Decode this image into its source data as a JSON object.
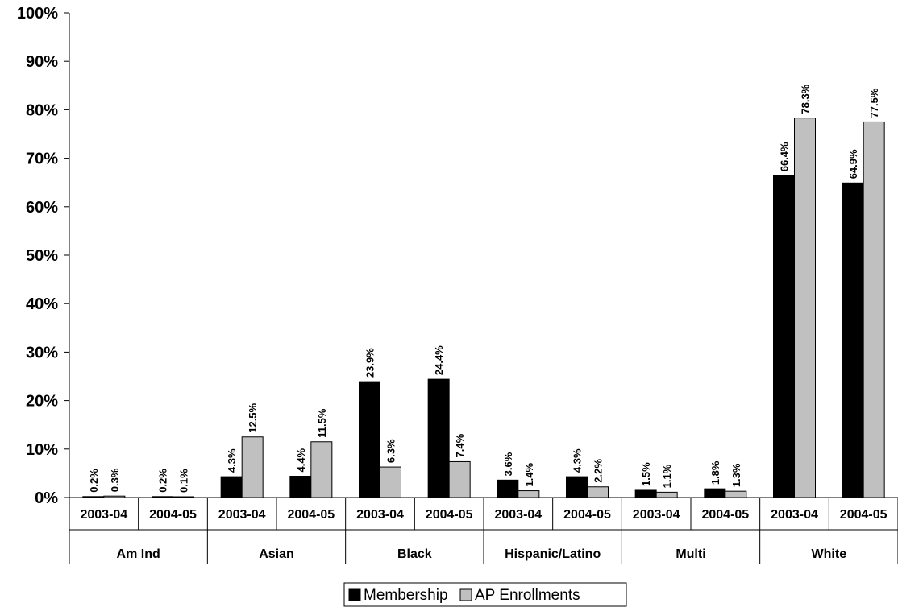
{
  "chart_data": {
    "type": "bar",
    "ylim": [
      0,
      100
    ],
    "yticks": [
      "0%",
      "10%",
      "20%",
      "30%",
      "40%",
      "50%",
      "60%",
      "70%",
      "80%",
      "90%",
      "100%"
    ],
    "grid": false,
    "legend_position": "bottom",
    "groups": [
      {
        "name": "Am Ind",
        "categories": [
          "2003-04",
          "2004-05"
        ]
      },
      {
        "name": "Asian",
        "categories": [
          "2003-04",
          "2004-05"
        ]
      },
      {
        "name": "Black",
        "categories": [
          "2003-04",
          "2004-05"
        ]
      },
      {
        "name": "Hispanic/Latino",
        "categories": [
          "2003-04",
          "2004-05"
        ]
      },
      {
        "name": "Multi",
        "categories": [
          "2003-04",
          "2004-05"
        ]
      },
      {
        "name": "White",
        "categories": [
          "2003-04",
          "2004-05"
        ]
      }
    ],
    "series": [
      {
        "name": "Membership",
        "color": "#000000",
        "values": [
          0.2,
          0.2,
          4.3,
          4.4,
          23.9,
          24.4,
          3.6,
          4.3,
          1.5,
          1.8,
          66.4,
          64.9
        ],
        "labels": [
          "0.2%",
          "0.2%",
          "4.3%",
          "4.4%",
          "23.9%",
          "24.4%",
          "3.6%",
          "4.3%",
          "1.5%",
          "1.8%",
          "66.4%",
          "64.9%"
        ]
      },
      {
        "name": "AP Enrollments",
        "color": "#c0c0c0",
        "values": [
          0.3,
          0.1,
          12.5,
          11.5,
          6.3,
          7.4,
          1.4,
          2.2,
          1.1,
          1.3,
          78.3,
          77.5
        ],
        "labels": [
          "0.3%",
          "0.1%",
          "12.5%",
          "11.5%",
          "6.3%",
          "7.4%",
          "1.4%",
          "2.2%",
          "1.1%",
          "1.3%",
          "78.3%",
          "77.5%"
        ]
      }
    ]
  }
}
